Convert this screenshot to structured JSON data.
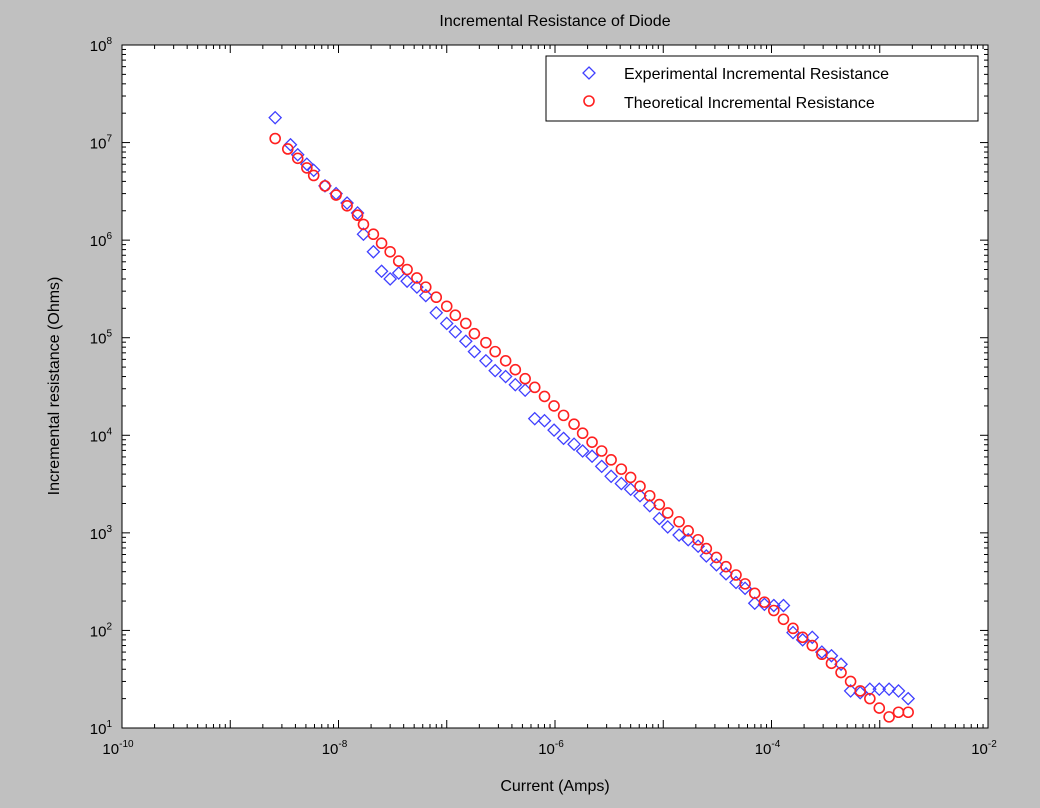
{
  "chart_data": {
    "type": "scatter",
    "title": "Incremental Resistance of Diode",
    "xlabel": "Current (Amps)",
    "ylabel": "Incremental resistance (Ohms)",
    "xscale": "log",
    "yscale": "log",
    "xlim": [
      1e-10,
      0.01
    ],
    "ylim": [
      10,
      100000000
    ],
    "grid": false,
    "legend_position": "top-right",
    "x_ticks": [
      {
        "value": 1e-10,
        "base": "10",
        "exp": "-10"
      },
      {
        "value": 1e-08,
        "base": "10",
        "exp": "-8"
      },
      {
        "value": 1e-06,
        "base": "10",
        "exp": "-6"
      },
      {
        "value": 0.0001,
        "base": "10",
        "exp": "-4"
      },
      {
        "value": 0.01,
        "base": "10",
        "exp": "-2"
      }
    ],
    "y_ticks": [
      {
        "value": 10,
        "base": "10",
        "exp": "1"
      },
      {
        "value": 100,
        "base": "10",
        "exp": "2"
      },
      {
        "value": 1000,
        "base": "10",
        "exp": "3"
      },
      {
        "value": 10000,
        "base": "10",
        "exp": "4"
      },
      {
        "value": 100000,
        "base": "10",
        "exp": "5"
      },
      {
        "value": 1000000,
        "base": "10",
        "exp": "6"
      },
      {
        "value": 10000000,
        "base": "10",
        "exp": "7"
      },
      {
        "value": 100000000,
        "base": "10",
        "exp": "8"
      }
    ],
    "series": [
      {
        "name": "Experimental Incremental Resistance",
        "marker": "diamond",
        "color": "#4040ff",
        "x": [
          2.6e-09,
          3.6e-09,
          4.2e-09,
          5.1e-09,
          5.9e-09,
          7.5e-09,
          9.5e-09,
          1.2e-08,
          1.5e-08,
          1.7e-08,
          2.1e-08,
          2.5e-08,
          3e-08,
          3.6e-08,
          4.3e-08,
          5.3e-08,
          6.4e-08,
          8e-08,
          1e-07,
          1.2e-07,
          1.5e-07,
          1.8e-07,
          2.3e-07,
          2.8e-07,
          3.5e-07,
          4.3e-07,
          5.3e-07,
          6.5e-07,
          8e-07,
          9.8e-07,
          1.2e-06,
          1.5e-06,
          1.8e-06,
          2.2e-06,
          2.7e-06,
          3.3e-06,
          4.1e-06,
          5e-06,
          6.1e-06,
          7.5e-06,
          9.2e-06,
          1.1e-05,
          1.4e-05,
          1.7e-05,
          2.1e-05,
          2.5e-05,
          3.1e-05,
          3.8e-05,
          4.7e-05,
          5.7e-05,
          7e-05,
          8.6e-05,
          0.000105,
          0.000129,
          0.000158,
          0.000194,
          0.000238,
          0.000292,
          0.000358,
          0.000439,
          0.000538,
          0.00066,
          0.00081,
          0.00099,
          0.00122,
          0.00149,
          0.00183
        ],
        "y": [
          18000000,
          9500000,
          7500000,
          6000000,
          5200000,
          3600000,
          3000000,
          2400000,
          1900000,
          1150000,
          760000,
          480000,
          400000,
          460000,
          380000,
          330000,
          270000,
          180000,
          140000,
          115000,
          92000,
          72000,
          58000,
          46000,
          40000,
          33000,
          29000,
          14800,
          14100,
          11300,
          9300,
          8100,
          6900,
          6100,
          4800,
          3800,
          3200,
          2800,
          2400,
          1900,
          1400,
          1150,
          950,
          850,
          730,
          580,
          470,
          380,
          310,
          270,
          190,
          185,
          180,
          180,
          95,
          80,
          85,
          60,
          55,
          45,
          24,
          23,
          25,
          25,
          25,
          24,
          20
        ]
      },
      {
        "name": "Theoretical Incremental Resistance",
        "marker": "circle",
        "color": "#ff2020",
        "x": [
          2.6e-09,
          3.4e-09,
          4.2e-09,
          5.1e-09,
          5.9e-09,
          7.5e-09,
          9.5e-09,
          1.2e-08,
          1.5e-08,
          1.7e-08,
          2.1e-08,
          2.5e-08,
          3e-08,
          3.6e-08,
          4.3e-08,
          5.3e-08,
          6.4e-08,
          8e-08,
          1e-07,
          1.2e-07,
          1.5e-07,
          1.8e-07,
          2.3e-07,
          2.8e-07,
          3.5e-07,
          4.3e-07,
          5.3e-07,
          6.5e-07,
          8e-07,
          9.8e-07,
          1.2e-06,
          1.5e-06,
          1.8e-06,
          2.2e-06,
          2.7e-06,
          3.3e-06,
          4.1e-06,
          5e-06,
          6.1e-06,
          7.5e-06,
          9.2e-06,
          1.1e-05,
          1.4e-05,
          1.7e-05,
          2.1e-05,
          2.5e-05,
          3.1e-05,
          3.8e-05,
          4.7e-05,
          5.7e-05,
          7e-05,
          8.6e-05,
          0.000105,
          0.000129,
          0.000158,
          0.000194,
          0.000238,
          0.000292,
          0.000358,
          0.000439,
          0.000538,
          0.00066,
          0.00081,
          0.00099,
          0.00122,
          0.00149,
          0.00183
        ],
        "y": [
          11000000,
          8600000,
          6900000,
          5500000,
          4600000,
          3600000,
          2900000,
          2250000,
          1800000,
          1450000,
          1150000,
          930000,
          760000,
          610000,
          500000,
          410000,
          330000,
          260000,
          210000,
          170000,
          140000,
          110000,
          89000,
          72000,
          58000,
          47000,
          38000,
          31000,
          25000,
          20000,
          16000,
          13000,
          10500,
          8500,
          6900,
          5600,
          4500,
          3700,
          3000,
          2400,
          1950,
          1600,
          1300,
          1050,
          850,
          690,
          560,
          450,
          370,
          300,
          240,
          195,
          160,
          130,
          105,
          85,
          70,
          57,
          46,
          37,
          30,
          24,
          20,
          16,
          13,
          14.5,
          14.5
        ]
      }
    ]
  }
}
